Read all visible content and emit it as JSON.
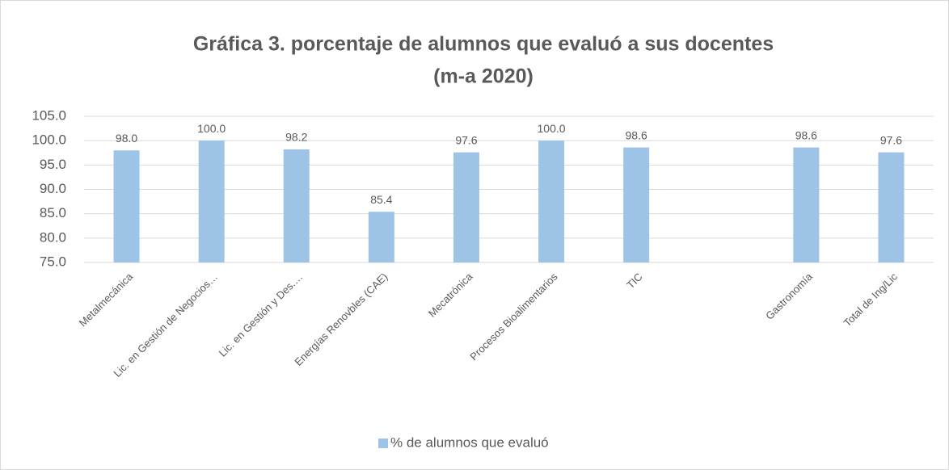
{
  "chart_data": {
    "type": "bar",
    "title": [
      "Gráfica 3. porcentaje  de alumnos  que evaluó a sus docentes",
      "(m-a 2020)"
    ],
    "categories": [
      "Metalmecánica",
      "Lic. en Gestión de Negocios…",
      "Lic. en Gestión y Des.…",
      "Energías Renovbles (CAE)",
      "Mecatrónica",
      "Procesos Bioalimentarios",
      "TIC",
      null,
      "Gastronomía",
      "Total de Ing/Lic"
    ],
    "series": [
      {
        "name": "% de alumnos  que evaluó",
        "color": "#9dc3e6",
        "values": [
          98.0,
          100.0,
          98.2,
          85.4,
          97.6,
          100.0,
          98.6,
          null,
          98.6,
          97.6
        ],
        "value_labels": [
          "98.0",
          "100.0",
          "98.2",
          "85.4",
          "97.6",
          "100.0",
          "98.6",
          null,
          "98.6",
          "97.6"
        ]
      }
    ],
    "ylim": [
      75,
      105
    ],
    "yticks": [
      {
        "value": 75,
        "label": "75.0"
      },
      {
        "value": 80,
        "label": "80.0"
      },
      {
        "value": 85,
        "label": "85.0"
      },
      {
        "value": 90,
        "label": "90.0"
      },
      {
        "value": 95,
        "label": "95.0"
      },
      {
        "value": 100,
        "label": "100.0"
      },
      {
        "value": 105,
        "label": "105.0"
      }
    ],
    "grid": true,
    "legend": "bottom"
  }
}
